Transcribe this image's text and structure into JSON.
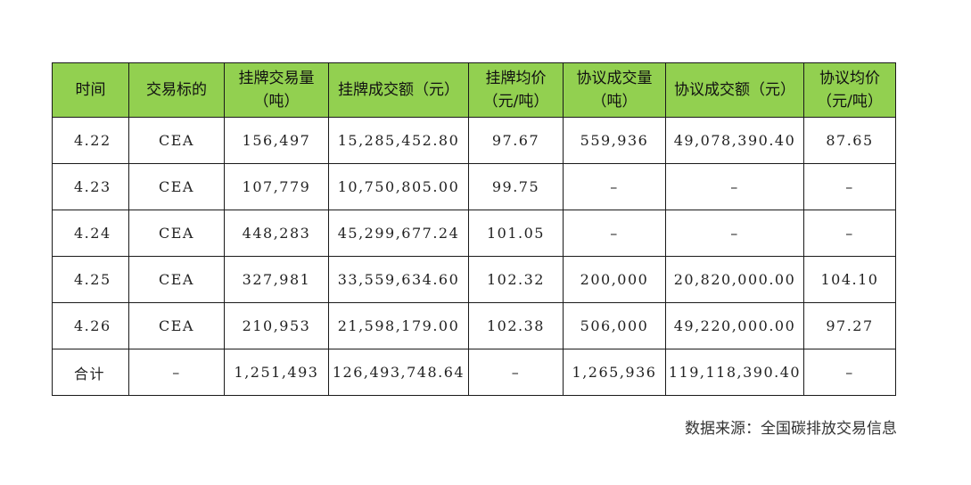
{
  "table": {
    "headers": [
      {
        "line1": "时间",
        "line2": ""
      },
      {
        "line1": "交易标的",
        "line2": ""
      },
      {
        "line1": "挂牌交易量",
        "line2": "（吨）"
      },
      {
        "line1": "挂牌成交额（元）",
        "line2": ""
      },
      {
        "line1": "挂牌均价",
        "line2": "（元/吨）"
      },
      {
        "line1": "协议成交量",
        "line2": "（吨）"
      },
      {
        "line1": "协议成交额（元）",
        "line2": ""
      },
      {
        "line1": "协议均价",
        "line2": "（元/吨）"
      }
    ],
    "rows": [
      [
        "4.22",
        "CEA",
        "156,497",
        "15,285,452.80",
        "97.67",
        "559,936",
        "49,078,390.40",
        "87.65"
      ],
      [
        "4.23",
        "CEA",
        "107,779",
        "10,750,805.00",
        "99.75",
        "–",
        "–",
        "–"
      ],
      [
        "4.24",
        "CEA",
        "448,283",
        "45,299,677.24",
        "101.05",
        "–",
        "–",
        "–"
      ],
      [
        "4.25",
        "CEA",
        "327,981",
        "33,559,634.60",
        "102.32",
        "200,000",
        "20,820,000.00",
        "104.10"
      ],
      [
        "4.26",
        "CEA",
        "210,953",
        "21,598,179.00",
        "102.38",
        "506,000",
        "49,220,000.00",
        "97.27"
      ],
      [
        "合计",
        "–",
        "1,251,493",
        "126,493,748.64",
        "–",
        "1,265,936",
        "119,118,390.40",
        "–"
      ]
    ]
  },
  "source_note": "数据来源：全国碳排放交易信息",
  "colors": {
    "header_bg": "#92d050",
    "border": "#1a1a1a"
  }
}
